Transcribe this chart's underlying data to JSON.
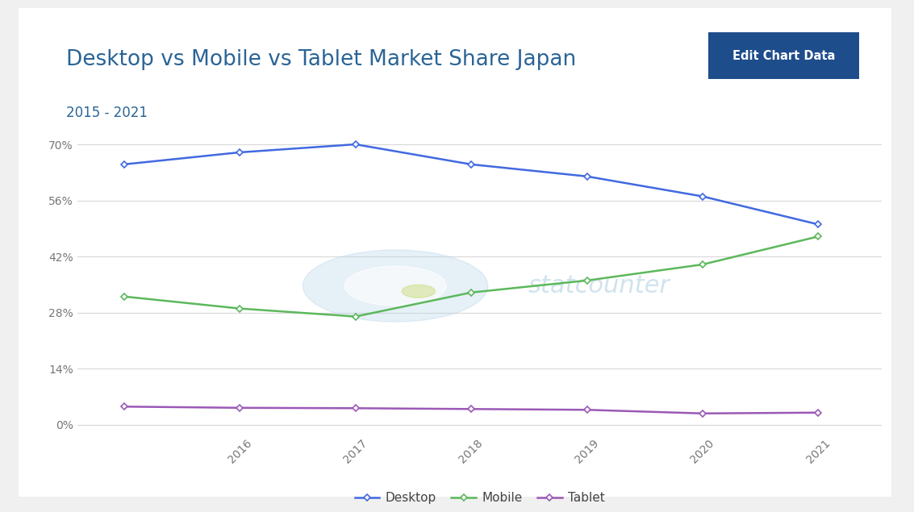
{
  "title": "Desktop vs Mobile vs Tablet Market Share Japan",
  "subtitle": "2015 - 2021",
  "years": [
    2015,
    2016,
    2017,
    2018,
    2019,
    2020,
    2021
  ],
  "desktop": [
    65.0,
    68.0,
    70.0,
    65.0,
    62.0,
    57.0,
    50.0
  ],
  "mobile": [
    32.0,
    29.0,
    27.0,
    33.0,
    36.0,
    40.0,
    47.0
  ],
  "tablet": [
    4.5,
    4.2,
    4.1,
    3.9,
    3.7,
    2.8,
    3.0
  ],
  "desktop_color": "#4169e1",
  "mobile_color": "#5cb85c",
  "tablet_color": "#9b59b6",
  "grid_color": "#d8d8d8",
  "yticks": [
    0,
    14,
    28,
    42,
    56,
    70
  ],
  "ylim": [
    -2,
    76
  ],
  "title_color": "#2a6496",
  "subtitle_color": "#2a6496",
  "button_bg": "#1e4d8c",
  "button_text": "Edit Chart Data",
  "watermark_text": "statcounter",
  "outer_bg": "#f0f0f0",
  "card_bg": "#ffffff",
  "tick_label_color": "#777777",
  "xtick_labels": [
    "2016",
    "2017",
    "2018",
    "2019",
    "2020",
    "2021"
  ],
  "xtick_positions": [
    2016,
    2017,
    2018,
    2019,
    2020,
    2021
  ]
}
